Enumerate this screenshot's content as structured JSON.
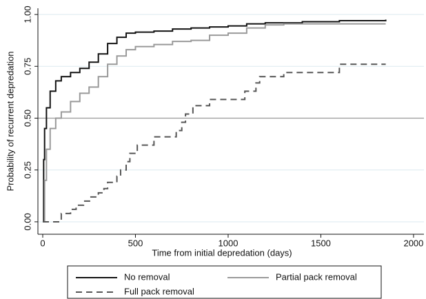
{
  "chart_data": {
    "type": "line",
    "step": true,
    "x_label": "Time from initial depredation (days)",
    "y_label": "Probability of recurrent depredation",
    "xlim": [
      -26,
      2056
    ],
    "ylim": [
      -0.06,
      1.03
    ],
    "xticks": [
      0,
      500,
      1000,
      1500,
      2000
    ],
    "yticks": [
      {
        "value": 0,
        "label": "0.00"
      },
      {
        "value": 0.25,
        "label": "0.25"
      },
      {
        "value": 0.5,
        "label": "0.50"
      },
      {
        "value": 0.75,
        "label": "0.75"
      },
      {
        "value": 1,
        "label": "1.00"
      }
    ],
    "grid": true,
    "hline": 0.5,
    "legend": "bottom",
    "series": [
      {
        "name": "No removal",
        "color": "#111111",
        "dash": "none",
        "x": [
          0,
          5,
          10,
          20,
          40,
          70,
          100,
          150,
          200,
          250,
          300,
          350,
          400,
          450,
          500,
          600,
          700,
          800,
          900,
          1000,
          1100,
          1200,
          1400,
          1600,
          1850
        ],
        "values": [
          0,
          0.3,
          0.45,
          0.55,
          0.63,
          0.68,
          0.7,
          0.72,
          0.74,
          0.77,
          0.81,
          0.86,
          0.89,
          0.91,
          0.915,
          0.92,
          0.93,
          0.935,
          0.94,
          0.945,
          0.955,
          0.96,
          0.965,
          0.97,
          0.975
        ]
      },
      {
        "name": "Partial pack removal",
        "color": "#999999",
        "dash": "none",
        "x": [
          0,
          10,
          20,
          40,
          70,
          100,
          150,
          200,
          250,
          300,
          350,
          400,
          450,
          500,
          600,
          700,
          800,
          900,
          1000,
          1100,
          1200,
          1300,
          1850
        ],
        "values": [
          0,
          0.2,
          0.35,
          0.45,
          0.5,
          0.53,
          0.58,
          0.62,
          0.65,
          0.7,
          0.76,
          0.8,
          0.83,
          0.845,
          0.855,
          0.87,
          0.875,
          0.9,
          0.91,
          0.935,
          0.95,
          0.955,
          0.955
        ]
      },
      {
        "name": "Full pack removal",
        "color": "#555555",
        "dash": "9 6",
        "x": [
          0,
          100,
          150,
          180,
          220,
          260,
          300,
          330,
          350,
          400,
          420,
          450,
          470,
          510,
          600,
          720,
          750,
          770,
          810,
          900,
          1050,
          1090,
          1150,
          1170,
          1300,
          1600,
          1850
        ],
        "values": [
          0,
          0.04,
          0.06,
          0.08,
          0.1,
          0.12,
          0.14,
          0.16,
          0.19,
          0.22,
          0.25,
          0.29,
          0.33,
          0.37,
          0.41,
          0.44,
          0.48,
          0.52,
          0.56,
          0.59,
          0.59,
          0.63,
          0.67,
          0.7,
          0.72,
          0.76,
          0.76
        ]
      }
    ]
  }
}
